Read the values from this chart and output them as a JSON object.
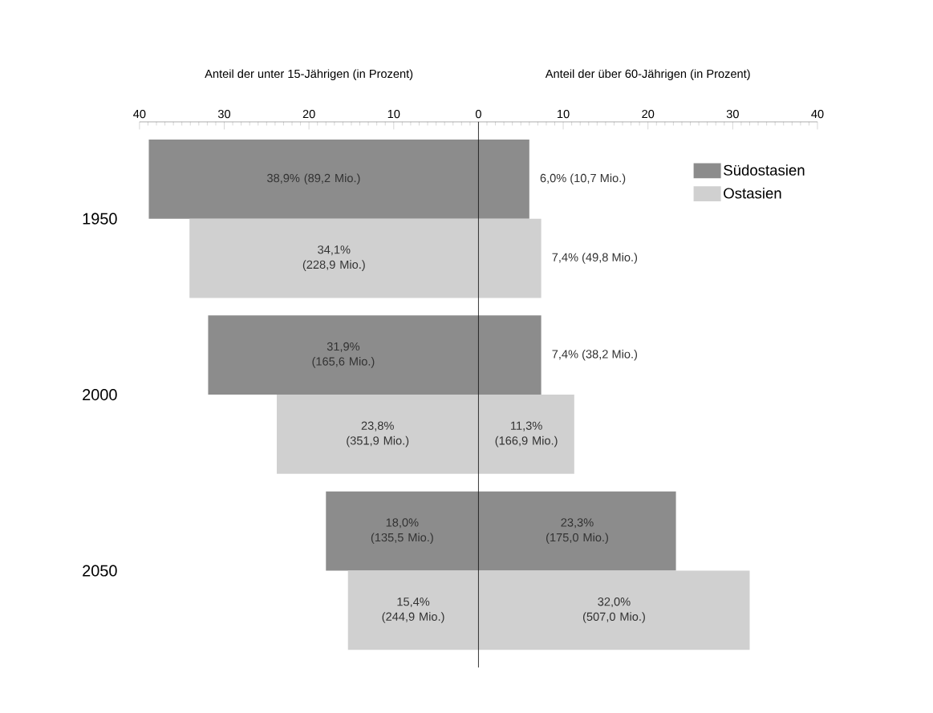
{
  "chart_data": {
    "type": "bar",
    "orientation": "horizontal",
    "annotations": [
      "Anteil der unter 15-Jährigen (in Prozent)",
      "Anteil der über 60-Jährigen (in Prozent)"
    ],
    "categories": [
      "1950",
      "2000",
      "2050"
    ],
    "series": [
      {
        "name": "Südostasien",
        "color": "#8c8c8c",
        "values": [
          38.9,
          31.9,
          18.0
        ],
        "base": [
          -38.9,
          -31.9,
          -18.0
        ],
        "value_labels": [
          "38,9% (89,2 Mio.)",
          "31,9% (165,6 Mio.)",
          "18,0% (135,5 Mio.)"
        ]
      },
      {
        "color": "#8c8c8c",
        "values": [
          6.0,
          7.4,
          23.3
        ],
        "value_labels": [
          "6,0% (10,7 Mio.)",
          "7,4% (38,2 Mio.)",
          "23,3% (175,0 Mio.)"
        ]
      },
      {
        "name": "Ostasien",
        "color": "#d0d0d0",
        "values": [
          34.1,
          23.8,
          15.4
        ],
        "base": [
          -34.1,
          -23.8,
          -15.4
        ],
        "value_labels": [
          "34,1% (228,9 Mio.)",
          "23,8% (351,9 Mio.)",
          "15,4% (244,9 Mio.)"
        ]
      },
      {
        "color": "#d0d0d0",
        "values": [
          7.4,
          11.3,
          32.0
        ],
        "value_labels": [
          "7,4% (49,8 Mio.)",
          "11,3% (166,9 Mio.)",
          "32,0% (507,0 Mio.)"
        ]
      }
    ],
    "xlim": [
      -40,
      40
    ],
    "xticks": [
      {
        "value": -40,
        "label": "40"
      },
      {
        "value": -30,
        "label": "30"
      },
      {
        "value": -20,
        "label": "20"
      },
      {
        "value": -10,
        "label": "10"
      },
      0,
      10,
      20,
      30,
      40
    ],
    "ref_lines": [
      {
        "axis": "x",
        "value": 0,
        "color": "#000000"
      }
    ],
    "legend": "top right"
  }
}
